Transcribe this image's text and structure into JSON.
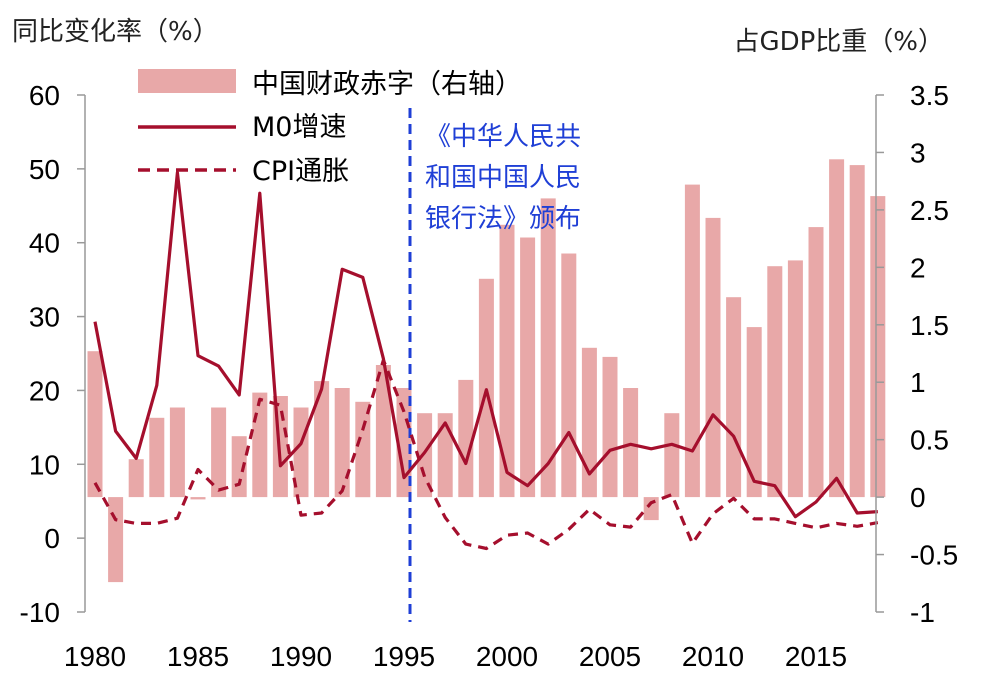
{
  "chart_data": {
    "type": "bar+line",
    "left_axis_title": "同比变化率（%）",
    "right_axis_title": "占GDP比重（%）",
    "left_ylim": [
      -10,
      60
    ],
    "left_ticks": [
      "-10",
      "0",
      "10",
      "20",
      "30",
      "40",
      "50",
      "60"
    ],
    "right_ylim": [
      -1,
      3.5
    ],
    "right_ticks": [
      "-1",
      "-0.5",
      "0",
      "0.5",
      "1",
      "1.5",
      "2",
      "2.5",
      "3",
      "3.5"
    ],
    "x_ticks": [
      "1980",
      "1985",
      "1990",
      "1995",
      "2000",
      "2005",
      "2010",
      "2015"
    ],
    "years": [
      1980,
      1981,
      1982,
      1983,
      1984,
      1985,
      1986,
      1987,
      1988,
      1989,
      1990,
      1991,
      1992,
      1993,
      1994,
      1995,
      1996,
      1997,
      1998,
      1999,
      2000,
      2001,
      2002,
      2003,
      2004,
      2005,
      2006,
      2007,
      2008,
      2009,
      2010,
      2011,
      2012,
      2013,
      2014,
      2015,
      2016,
      2017,
      2018
    ],
    "series": [
      {
        "name": "中国财政赤字（右轴）",
        "kind": "bar",
        "axis": "right",
        "color": "#e8a8a8",
        "values": [
          1.27,
          -0.74,
          0.33,
          0.69,
          0.78,
          -0.02,
          0.78,
          0.53,
          0.91,
          0.88,
          0.78,
          1.01,
          0.95,
          0.83,
          1.15,
          0.95,
          0.73,
          0.73,
          1.02,
          1.9,
          2.37,
          2.26,
          2.6,
          2.12,
          1.3,
          1.22,
          0.95,
          -0.2,
          0.73,
          2.72,
          2.43,
          1.74,
          1.48,
          2.01,
          2.06,
          2.35,
          2.94,
          2.89,
          2.62
        ]
      },
      {
        "name": "M0增速",
        "kind": "line",
        "axis": "left",
        "color": "#a50f2d",
        "dashed": false,
        "values": [
          29.3,
          14.5,
          10.8,
          20.7,
          49.5,
          24.7,
          23.3,
          19.4,
          46.7,
          9.8,
          12.8,
          20.2,
          36.4,
          35.3,
          24.3,
          8.2,
          11.6,
          15.6,
          10.1,
          20.1,
          8.9,
          7.1,
          10.1,
          14.3,
          8.7,
          11.9,
          12.7,
          12.1,
          12.7,
          11.8,
          16.7,
          13.8,
          7.7,
          7.1,
          2.9,
          4.9,
          8.1,
          3.4,
          3.6
        ]
      },
      {
        "name": "CPI通胀",
        "kind": "line",
        "axis": "left",
        "color": "#a50f2d",
        "dashed": true,
        "values": [
          7.5,
          2.5,
          2.0,
          2.0,
          2.7,
          9.3,
          6.5,
          7.3,
          18.8,
          18.0,
          3.1,
          3.4,
          6.4,
          14.7,
          24.1,
          17.1,
          8.3,
          2.8,
          -0.8,
          -1.4,
          0.4,
          0.7,
          -0.8,
          1.2,
          3.9,
          1.8,
          1.5,
          4.8,
          5.9,
          -0.7,
          3.3,
          5.4,
          2.6,
          2.6,
          2.0,
          1.4,
          2.0,
          1.6,
          2.1
        ]
      }
    ],
    "annotation": {
      "year": 1995,
      "lines": [
        "《中华人民共",
        "和国中国人民",
        "银行法》颁布"
      ],
      "color": "#1f3fd6"
    },
    "grid": false,
    "legend_position": "top-left"
  }
}
